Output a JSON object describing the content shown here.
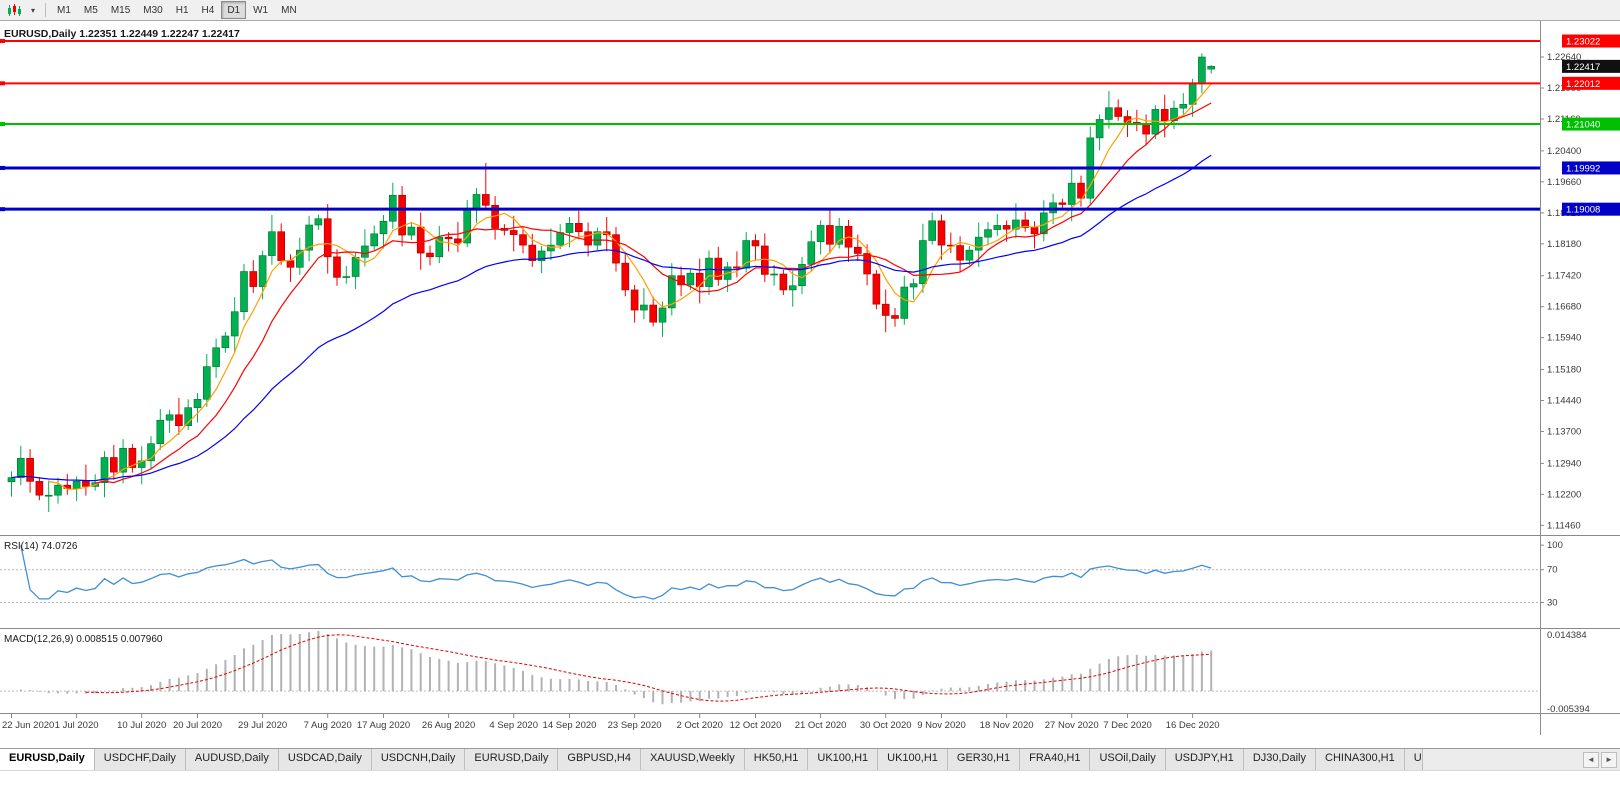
{
  "toolbar": {
    "timeframes": [
      "M1",
      "M5",
      "M15",
      "M30",
      "H1",
      "H4",
      "D1",
      "W1",
      "MN"
    ],
    "active_timeframe": "D1"
  },
  "chart_header": {
    "symbol": "EURUSD,Daily",
    "ohlc": "1.22351 1.22449 1.22247 1.22417",
    "full": "EURUSD,Daily 1.22351 1.22449 1.22247 1.22417"
  },
  "price_axis": {
    "ticks": [
      "1.22640",
      "1.21900",
      "1.21160",
      "1.20400",
      "1.19660",
      "1.18920",
      "1.18180",
      "1.17420",
      "1.16680",
      "1.15940",
      "1.15180",
      "1.14440",
      "1.13700",
      "1.12940",
      "1.12200",
      "1.11460"
    ]
  },
  "levels": [
    {
      "value": 1.23022,
      "label": "1.23022",
      "color": "#FF0000",
      "width": 2
    },
    {
      "value": 1.22012,
      "label": "1.22012",
      "color": "#FF0000",
      "width": 2
    },
    {
      "value": 1.2104,
      "label": "1.21040",
      "color": "#00BE00",
      "width": 2
    },
    {
      "value": 1.19992,
      "label": "1.19992",
      "color": "#0000C8",
      "width": 3
    },
    {
      "value": 1.19008,
      "label": "1.19008",
      "color": "#0000C8",
      "width": 3
    }
  ],
  "current_price": {
    "value": 1.22417,
    "label": "1.22417",
    "box_color": "#101010"
  },
  "rsi": {
    "name": "RSI(14)",
    "value": "74.0726",
    "full": "RSI(14) 74.0726",
    "axis_labels": [
      {
        "value": 100,
        "label": "100"
      },
      {
        "value": 70,
        "label": "70"
      },
      {
        "value": 30,
        "label": "30"
      }
    ],
    "guide_levels": [
      70,
      30
    ],
    "color": "#3F8FD2"
  },
  "macd": {
    "name": "MACD(12,26,9)",
    "values": "0.008515 0.007960",
    "full": "MACD(12,26,9) 0.008515 0.007960",
    "max_label": "0.014384",
    "min_label": "-0.005394",
    "histogram_color": "#b2b2b2",
    "signal_color": "#e00000"
  },
  "time_axis": {
    "ticks": [
      {
        "label": "22 Jun 2020",
        "index": 0
      },
      {
        "label": "1 Jul 2020",
        "index": 7
      },
      {
        "label": "10 Jul 2020",
        "index": 14
      },
      {
        "label": "20 Jul 2020",
        "index": 20
      },
      {
        "label": "29 Jul 2020",
        "index": 27
      },
      {
        "label": "7 Aug 2020",
        "index": 34
      },
      {
        "label": "17 Aug 2020",
        "index": 40
      },
      {
        "label": "26 Aug 2020",
        "index": 47
      },
      {
        "label": "4 Sep 2020",
        "index": 54
      },
      {
        "label": "14 Sep 2020",
        "index": 60
      },
      {
        "label": "23 Sep 2020",
        "index": 67
      },
      {
        "label": "2 Oct 2020",
        "index": 74
      },
      {
        "label": "12 Oct 2020",
        "index": 80
      },
      {
        "label": "21 Oct 2020",
        "index": 87
      },
      {
        "label": "30 Oct 2020",
        "index": 94
      },
      {
        "label": "9 Nov 2020",
        "index": 100
      },
      {
        "label": "18 Nov 2020",
        "index": 107
      },
      {
        "label": "27 Nov 2020",
        "index": 114
      },
      {
        "label": "7 Dec 2020",
        "index": 120
      },
      {
        "label": "16 Dec 2020",
        "index": 127
      }
    ]
  },
  "tabs": {
    "items": [
      "EURUSD,Daily",
      "USDCHF,Daily",
      "AUDUSD,Daily",
      "USDCAD,Daily",
      "USDCNH,Daily",
      "EURUSD,Daily",
      "GBPUSD,H4",
      "XAUUSD,Weekly",
      "HK50,H1",
      "UK100,H1",
      "UK100,H1",
      "GER30,H1",
      "FRA40,H1",
      "USOil,Daily",
      "USDJPY,H1",
      "DJ30,Daily",
      "CHINA300,H1",
      "U"
    ],
    "active_index": 0,
    "nav_icons": [
      "◄",
      "►"
    ]
  },
  "chart_data": {
    "type": "candlestick",
    "symbol": "EURUSD",
    "timeframe": "Daily",
    "ylim": [
      1.1123,
      1.235
    ],
    "rsi_ylim": [
      0,
      110
    ],
    "macd_ylim": [
      -0.005394,
      0.014384
    ],
    "rsi_period": 14,
    "macd_params": [
      12,
      26,
      9
    ],
    "bull_color": "#00B050",
    "bull_stroke": "#007030",
    "bear_color": "#F80000",
    "bear_stroke": "#9E0000",
    "ma": [
      {
        "period": 5,
        "type": "sma",
        "color": "#FFA000"
      },
      {
        "period": 10,
        "type": "sma",
        "color": "#FF0000"
      },
      {
        "period": 30,
        "type": "ema",
        "color": "#0000FF"
      }
    ],
    "candles": [
      [
        1.125,
        1.1275,
        1.1215,
        1.126
      ],
      [
        1.126,
        1.1336,
        1.1242,
        1.1306
      ],
      [
        1.1306,
        1.1328,
        1.1224,
        1.1251
      ],
      [
        1.1251,
        1.1261,
        1.1206,
        1.1218
      ],
      [
        1.1218,
        1.1253,
        1.1178,
        1.1218
      ],
      [
        1.1218,
        1.126,
        1.1198,
        1.1242
      ],
      [
        1.1242,
        1.1269,
        1.1219,
        1.1234
      ],
      [
        1.1234,
        1.1263,
        1.1204,
        1.1251
      ],
      [
        1.1251,
        1.1291,
        1.1217,
        1.1239
      ],
      [
        1.1239,
        1.1268,
        1.1229,
        1.1248
      ],
      [
        1.1248,
        1.1323,
        1.1213,
        1.1308
      ],
      [
        1.1308,
        1.1338,
        1.1255,
        1.1273
      ],
      [
        1.1273,
        1.1352,
        1.1246,
        1.133
      ],
      [
        1.133,
        1.134,
        1.1272,
        1.1284
      ],
      [
        1.1284,
        1.1335,
        1.1244,
        1.13
      ],
      [
        1.13,
        1.1359,
        1.128,
        1.1341
      ],
      [
        1.1341,
        1.1424,
        1.1326,
        1.1397
      ],
      [
        1.1397,
        1.1422,
        1.1367,
        1.141
      ],
      [
        1.141,
        1.145,
        1.1362,
        1.1384
      ],
      [
        1.1384,
        1.1447,
        1.1374,
        1.1427
      ],
      [
        1.1427,
        1.1462,
        1.1392,
        1.1447
      ],
      [
        1.1447,
        1.1555,
        1.1429,
        1.1525
      ],
      [
        1.1525,
        1.1592,
        1.1498,
        1.157
      ],
      [
        1.157,
        1.1608,
        1.1558,
        1.1598
      ],
      [
        1.1598,
        1.1691,
        1.1558,
        1.1656
      ],
      [
        1.1656,
        1.177,
        1.1636,
        1.1752
      ],
      [
        1.1752,
        1.1779,
        1.1701,
        1.1716
      ],
      [
        1.1716,
        1.1802,
        1.1686,
        1.179
      ],
      [
        1.179,
        1.1887,
        1.1768,
        1.1847
      ],
      [
        1.1847,
        1.1867,
        1.1768,
        1.1778
      ],
      [
        1.1778,
        1.1793,
        1.1727,
        1.1762
      ],
      [
        1.1762,
        1.1833,
        1.1744,
        1.1803
      ],
      [
        1.1803,
        1.1885,
        1.1776,
        1.1863
      ],
      [
        1.1863,
        1.1888,
        1.1851,
        1.1878
      ],
      [
        1.1878,
        1.1913,
        1.1747,
        1.1787
      ],
      [
        1.1787,
        1.1805,
        1.1718,
        1.1738
      ],
      [
        1.1738,
        1.1765,
        1.1723,
        1.174
      ],
      [
        1.174,
        1.1798,
        1.171,
        1.1786
      ],
      [
        1.1786,
        1.1853,
        1.1764,
        1.1813
      ],
      [
        1.1813,
        1.1862,
        1.1803,
        1.1842
      ],
      [
        1.1842,
        1.1887,
        1.1807,
        1.1872
      ],
      [
        1.1872,
        1.1964,
        1.1854,
        1.1934
      ],
      [
        1.1934,
        1.1956,
        1.1812,
        1.1839
      ],
      [
        1.1839,
        1.1868,
        1.1827,
        1.1858
      ],
      [
        1.1858,
        1.1893,
        1.1756,
        1.1796
      ],
      [
        1.1796,
        1.1814,
        1.1767,
        1.1787
      ],
      [
        1.1787,
        1.1861,
        1.1772,
        1.1834
      ],
      [
        1.1834,
        1.1846,
        1.18,
        1.183
      ],
      [
        1.183,
        1.187,
        1.1798,
        1.182
      ],
      [
        1.182,
        1.1923,
        1.181,
        1.1903
      ],
      [
        1.1903,
        1.1951,
        1.1868,
        1.1936
      ],
      [
        1.1936,
        1.2011,
        1.1898,
        1.191
      ],
      [
        1.191,
        1.1932,
        1.1828,
        1.1855
      ],
      [
        1.1855,
        1.1865,
        1.1838,
        1.185
      ],
      [
        1.185,
        1.1885,
        1.18,
        1.184
      ],
      [
        1.184,
        1.1858,
        1.1795,
        1.1815
      ],
      [
        1.1815,
        1.1842,
        1.1763,
        1.1778
      ],
      [
        1.1778,
        1.1813,
        1.1748,
        1.1801
      ],
      [
        1.1801,
        1.1855,
        1.1779,
        1.1815
      ],
      [
        1.1815,
        1.1865,
        1.1805,
        1.1845
      ],
      [
        1.1845,
        1.1882,
        1.181,
        1.1867
      ],
      [
        1.1867,
        1.1897,
        1.1829,
        1.1847
      ],
      [
        1.1847,
        1.1869,
        1.1788,
        1.1815
      ],
      [
        1.1815,
        1.1857,
        1.1803,
        1.1847
      ],
      [
        1.1847,
        1.1882,
        1.18,
        1.184
      ],
      [
        1.184,
        1.1858,
        1.1752,
        1.1772
      ],
      [
        1.1772,
        1.1799,
        1.1693,
        1.1708
      ],
      [
        1.1708,
        1.172,
        1.163,
        1.166
      ],
      [
        1.166,
        1.1712,
        1.1638,
        1.1672
      ],
      [
        1.1672,
        1.1692,
        1.1621,
        1.1631
      ],
      [
        1.1631,
        1.168,
        1.1596,
        1.1665
      ],
      [
        1.1665,
        1.1772,
        1.1647,
        1.1742
      ],
      [
        1.1742,
        1.1764,
        1.1693,
        1.172
      ],
      [
        1.172,
        1.1758,
        1.1708,
        1.1748
      ],
      [
        1.1748,
        1.1783,
        1.1676,
        1.1716
      ],
      [
        1.1716,
        1.1802,
        1.1696,
        1.1784
      ],
      [
        1.1784,
        1.1811,
        1.1718,
        1.1733
      ],
      [
        1.1733,
        1.1775,
        1.1703,
        1.1763
      ],
      [
        1.1763,
        1.18,
        1.1738,
        1.176
      ],
      [
        1.176,
        1.1846,
        1.175,
        1.1826
      ],
      [
        1.1826,
        1.1841,
        1.1778,
        1.1813
      ],
      [
        1.1813,
        1.1843,
        1.1727,
        1.1745
      ],
      [
        1.1745,
        1.1768,
        1.1718,
        1.1746
      ],
      [
        1.1746,
        1.1756,
        1.1696,
        1.1708
      ],
      [
        1.1708,
        1.1753,
        1.1668,
        1.1718
      ],
      [
        1.1718,
        1.1787,
        1.1698,
        1.1769
      ],
      [
        1.1769,
        1.185,
        1.1754,
        1.1823
      ],
      [
        1.1823,
        1.1874,
        1.1793,
        1.1862
      ],
      [
        1.1862,
        1.1902,
        1.1795,
        1.1817
      ],
      [
        1.1817,
        1.188,
        1.1807,
        1.186
      ],
      [
        1.186,
        1.1875,
        1.1775,
        1.181
      ],
      [
        1.181,
        1.184,
        1.1777,
        1.1795
      ],
      [
        1.1795,
        1.1817,
        1.1719,
        1.1746
      ],
      [
        1.1746,
        1.1756,
        1.1662,
        1.1674
      ],
      [
        1.1674,
        1.1709,
        1.1607,
        1.1647
      ],
      [
        1.1647,
        1.1665,
        1.162,
        1.164
      ],
      [
        1.164,
        1.1742,
        1.1625,
        1.1715
      ],
      [
        1.1715,
        1.1735,
        1.1685,
        1.1723
      ],
      [
        1.1723,
        1.1866,
        1.1701,
        1.1826
      ],
      [
        1.1826,
        1.1893,
        1.1816,
        1.1873
      ],
      [
        1.1873,
        1.1888,
        1.178,
        1.1815
      ],
      [
        1.1815,
        1.1845,
        1.1796,
        1.1814
      ],
      [
        1.1814,
        1.1836,
        1.1752,
        1.1779
      ],
      [
        1.1779,
        1.1813,
        1.1767,
        1.1803
      ],
      [
        1.1803,
        1.1869,
        1.1763,
        1.1834
      ],
      [
        1.1834,
        1.187,
        1.1814,
        1.1852
      ],
      [
        1.1852,
        1.1889,
        1.1837,
        1.1862
      ],
      [
        1.1862,
        1.1874,
        1.1823,
        1.1853
      ],
      [
        1.1853,
        1.1915,
        1.1831,
        1.1875
      ],
      [
        1.1875,
        1.1895,
        1.1847,
        1.1857
      ],
      [
        1.1857,
        1.1872,
        1.1807,
        1.1842
      ],
      [
        1.1842,
        1.1922,
        1.1824,
        1.1892
      ],
      [
        1.1892,
        1.1938,
        1.1865,
        1.1916
      ],
      [
        1.1916,
        1.1926,
        1.19,
        1.1912
      ],
      [
        1.1912,
        1.1998,
        1.1872,
        1.1963
      ],
      [
        1.1963,
        1.1981,
        1.1907,
        1.1927
      ],
      [
        1.1927,
        1.2098,
        1.1912,
        1.2071
      ],
      [
        1.2071,
        1.2127,
        1.2041,
        1.2115
      ],
      [
        1.2115,
        1.2183,
        1.2093,
        1.2143
      ],
      [
        1.2143,
        1.2163,
        1.2112,
        1.2122
      ],
      [
        1.2122,
        1.2137,
        1.2073,
        1.2108
      ],
      [
        1.2108,
        1.2138,
        1.2087,
        1.2105
      ],
      [
        1.2105,
        1.2127,
        1.2053,
        1.208
      ],
      [
        1.208,
        1.2149,
        1.2068,
        1.2139
      ],
      [
        1.2139,
        1.2174,
        1.2072,
        1.2112
      ],
      [
        1.2112,
        1.216,
        1.2092,
        1.2142
      ],
      [
        1.2142,
        1.2178,
        1.2127,
        1.2151
      ],
      [
        1.2151,
        1.2212,
        1.2121,
        1.22
      ],
      [
        1.22,
        1.2273,
        1.2178,
        1.2264
      ],
      [
        1.22351,
        1.22449,
        1.22247,
        1.22417
      ]
    ]
  }
}
